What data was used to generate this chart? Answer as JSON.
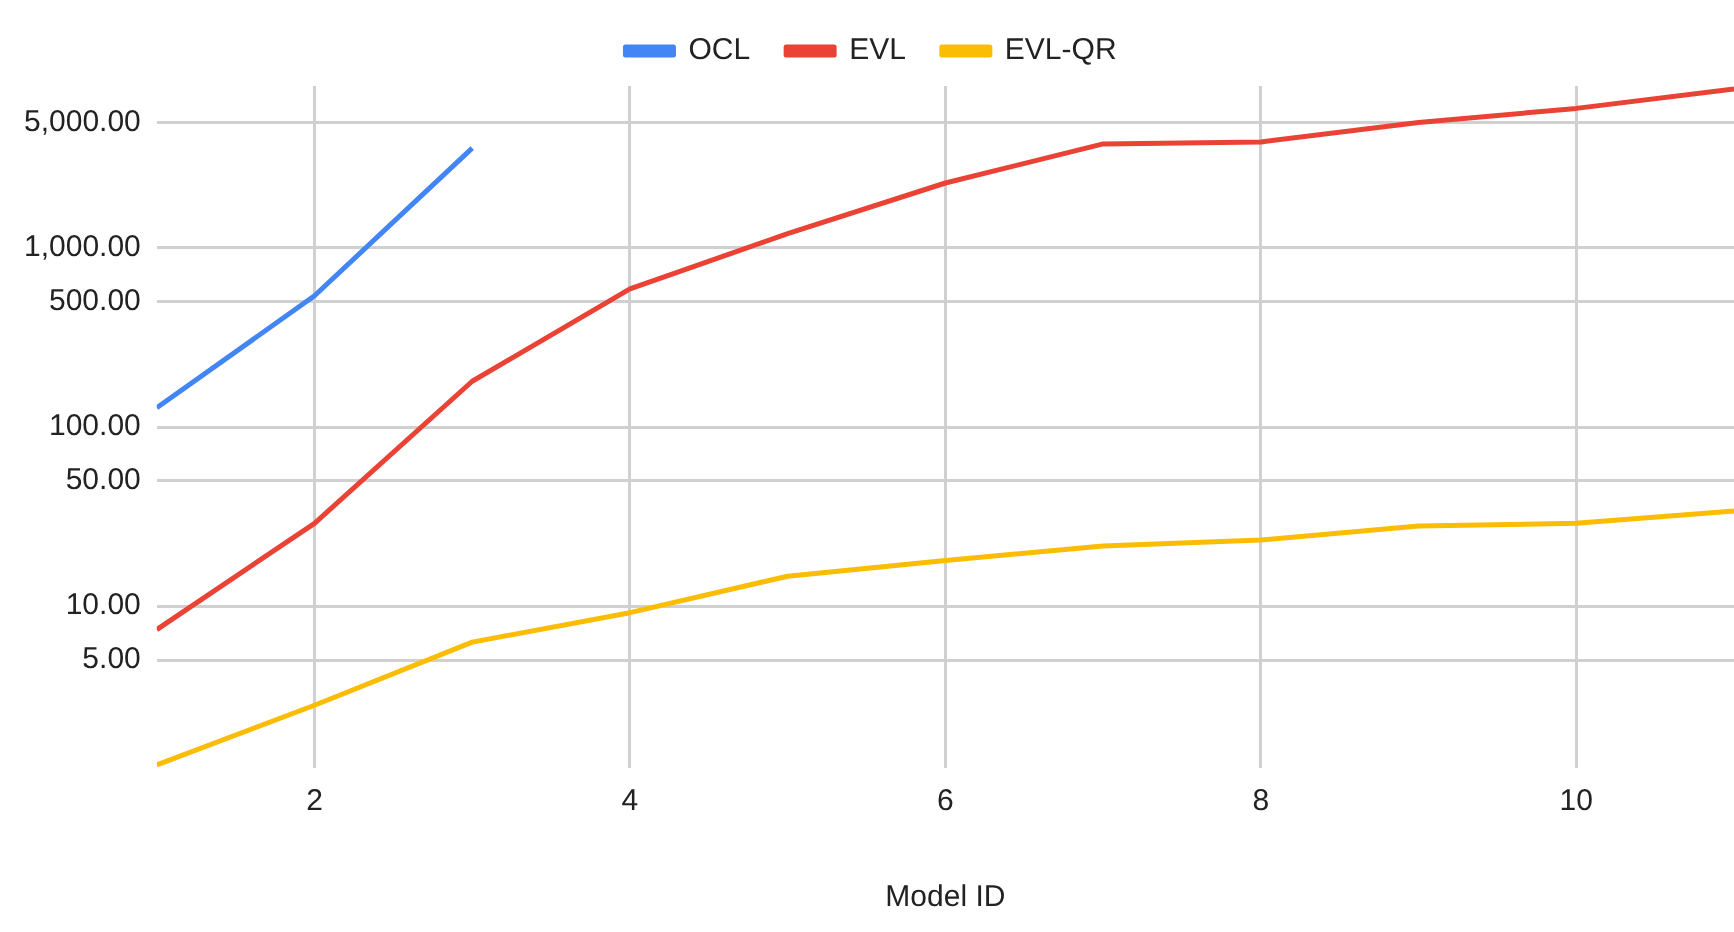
{
  "chart_data": {
    "type": "line",
    "xlabel": "Model ID",
    "legend": "top",
    "grid": true,
    "log": "y",
    "marker": "none",
    "line_style": "solid",
    "x": [
      1,
      2,
      3,
      4,
      5,
      6,
      7,
      8,
      9,
      10,
      11
    ],
    "xlim": [
      1,
      11
    ],
    "xticks": [
      2,
      4,
      6,
      8,
      10
    ],
    "ylim": [
      1.25,
      8000
    ],
    "yticks": [
      {
        "value": 5,
        "label": "5.00"
      },
      {
        "value": 10,
        "label": "10.00"
      },
      {
        "value": 50,
        "label": "50.00"
      },
      {
        "value": 100,
        "label": "100.00"
      },
      {
        "value": 500,
        "label": "500.00"
      },
      {
        "value": 1000,
        "label": "1,000.00"
      },
      {
        "value": 5000,
        "label": "5,000.00"
      }
    ],
    "series": [
      {
        "name": "OCL",
        "color": "#4285f4",
        "values": [
          128,
          540,
          3600,
          null,
          null,
          null,
          null,
          null,
          null,
          null,
          null
        ]
      },
      {
        "name": "EVL",
        "color": "#ea4335",
        "values": [
          7.4,
          29,
          180,
          590,
          1200,
          2300,
          3800,
          3900,
          5000,
          6000,
          7700
        ]
      },
      {
        "name": "EVL-QR",
        "color": "#fbbc04",
        "values": [
          1.3,
          2.8,
          6.3,
          9.2,
          14.7,
          18,
          21.7,
          23.4,
          28,
          29,
          34
        ]
      }
    ]
  }
}
